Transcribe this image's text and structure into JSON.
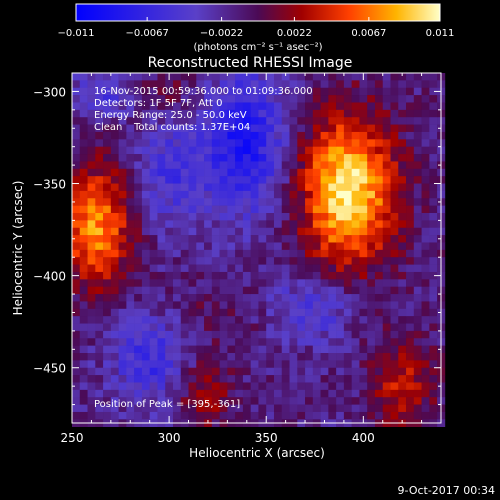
{
  "chart_data": {
    "type": "heatmap",
    "title": "Reconstructed RHESSI Image",
    "xlabel": "Heliocentric X (arcsec)",
    "ylabel": "Heliocentric Y (arcsec)",
    "xlim": [
      250,
      440
    ],
    "ylim": [
      -480,
      -290
    ],
    "x_ticks": [
      250,
      300,
      350,
      400
    ],
    "y_ticks": [
      -300,
      -350,
      -400,
      -450
    ],
    "colorbar": {
      "range": [
        -0.011,
        0.011
      ],
      "tick_values": [
        -0.011,
        -0.0067,
        -0.0022,
        0.0022,
        0.0067,
        0.011
      ],
      "tick_labels": [
        "−0.011",
        "−0.0067",
        "−0.0022",
        "0.0022",
        "0.0067",
        "0.011"
      ],
      "unit_label": "(photons cm⁻² s⁻¹ asec⁻²)"
    },
    "annotations": {
      "time_range": "16-Nov-2015 00:59:36.000 to 01:09:36.000",
      "detectors": "Detectors: 1F 5F 7F, Att 0",
      "energy": "Energy Range: 25.0 - 50.0 keV",
      "method": "Clean",
      "counts": "Total counts: 1.37E+04",
      "peak": "Position of Peak = [395,-361]"
    },
    "sources": [
      {
        "x": 395,
        "y": -361,
        "peak": 0.011
      },
      {
        "x": 263,
        "y": -372,
        "peak": 0.0085
      }
    ],
    "negative_region": {
      "x": 338,
      "y": -325,
      "value": -0.007
    },
    "footer": "9-Oct-2017 00:34"
  }
}
